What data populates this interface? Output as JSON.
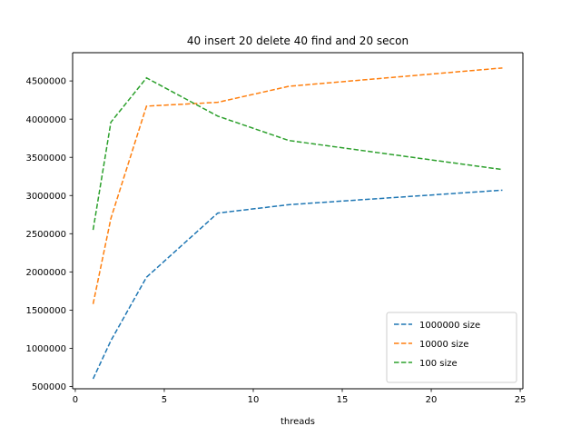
{
  "chart_data": {
    "type": "line",
    "title": "40 insert 20 delete 40 find and 20 secon",
    "xlabel": "threads",
    "ylabel": "",
    "xlim": [
      -0.15,
      25.15
    ],
    "ylim": [
      470000,
      4870000
    ],
    "xticks": [
      0,
      5,
      10,
      15,
      20,
      25
    ],
    "yticks": [
      500000,
      1000000,
      1500000,
      2000000,
      2500000,
      3000000,
      3500000,
      4000000,
      4500000
    ],
    "grid": false,
    "legend_position": "lower-right",
    "series": [
      {
        "name": "1000000 size",
        "color": "#1f77b4",
        "style": "dashed",
        "x": [
          1,
          2,
          4,
          8,
          12,
          24
        ],
        "y": [
          600000,
          1100000,
          1930000,
          2770000,
          2880000,
          3070000
        ]
      },
      {
        "name": "10000 size",
        "color": "#ff7f0e",
        "style": "dashed",
        "x": [
          1,
          2,
          4,
          8,
          12,
          24
        ],
        "y": [
          1580000,
          2700000,
          4170000,
          4220000,
          4430000,
          4670000
        ]
      },
      {
        "name": "100 size",
        "color": "#2ca02c",
        "style": "dashed",
        "x": [
          1,
          2,
          4,
          8,
          12,
          24
        ],
        "y": [
          2550000,
          3960000,
          4540000,
          4040000,
          3720000,
          3340000
        ]
      }
    ]
  }
}
